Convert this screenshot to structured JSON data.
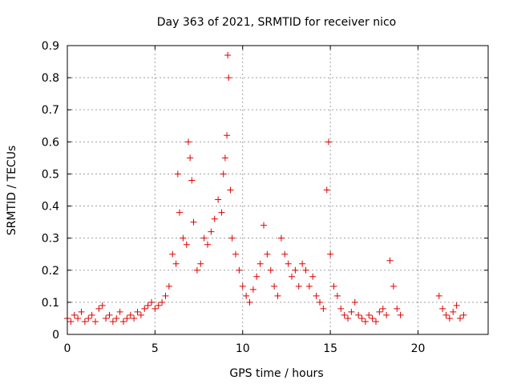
{
  "chart_data": {
    "type": "scatter",
    "title": "Day 363 of 2021, SRMTID for receiver nico",
    "xlabel": "GPS time / hours",
    "ylabel": "SRMTID / TECUs",
    "xlim": [
      0,
      24
    ],
    "ylim": [
      0,
      0.9
    ],
    "xticks": [
      0,
      5,
      10,
      15,
      20
    ],
    "xtick_labels": [
      "0",
      "5",
      "10",
      "15",
      "20"
    ],
    "yticks": [
      0,
      0.1,
      0.2,
      0.3,
      0.4,
      0.5,
      0.6,
      0.7,
      0.8,
      0.9
    ],
    "ytick_labels": [
      "0",
      "0.1",
      "0.2",
      "0.3",
      "0.4",
      "0.5",
      "0.6",
      "0.7",
      "0.8",
      "0.9"
    ],
    "grid": true,
    "marker": "+",
    "color": "#e00000",
    "series": [
      {
        "name": "SRMTID",
        "x": [
          0.0,
          0.2,
          0.4,
          0.6,
          0.8,
          1.0,
          1.2,
          1.4,
          1.6,
          1.8,
          2.0,
          2.2,
          2.4,
          2.6,
          2.8,
          3.0,
          3.2,
          3.4,
          3.6,
          3.8,
          4.0,
          4.2,
          4.4,
          4.6,
          4.8,
          5.0,
          5.2,
          5.4,
          5.6,
          5.8,
          6.0,
          6.2,
          6.3,
          6.4,
          6.6,
          6.8,
          6.9,
          7.0,
          7.1,
          7.2,
          7.4,
          7.6,
          7.8,
          8.0,
          8.2,
          8.4,
          8.6,
          8.8,
          8.9,
          9.0,
          9.1,
          9.15,
          9.2,
          9.3,
          9.4,
          9.6,
          9.8,
          10.0,
          10.2,
          10.4,
          10.6,
          10.8,
          11.0,
          11.2,
          11.4,
          11.6,
          11.8,
          12.0,
          12.2,
          12.4,
          12.6,
          12.8,
          13.0,
          13.2,
          13.4,
          13.6,
          13.8,
          14.0,
          14.2,
          14.4,
          14.6,
          14.8,
          14.9,
          15.0,
          15.2,
          15.4,
          15.6,
          15.8,
          16.0,
          16.2,
          16.4,
          16.6,
          16.8,
          17.0,
          17.2,
          17.4,
          17.6,
          17.8,
          18.0,
          18.2,
          18.4,
          18.6,
          18.8,
          19.0,
          21.2,
          21.4,
          21.6,
          21.8,
          22.0,
          22.2,
          22.4,
          22.6
        ],
        "y": [
          0.05,
          0.04,
          0.06,
          0.05,
          0.07,
          0.04,
          0.05,
          0.06,
          0.04,
          0.08,
          0.09,
          0.05,
          0.06,
          0.04,
          0.05,
          0.07,
          0.04,
          0.05,
          0.06,
          0.05,
          0.07,
          0.06,
          0.08,
          0.09,
          0.1,
          0.08,
          0.09,
          0.1,
          0.12,
          0.15,
          0.25,
          0.22,
          0.5,
          0.38,
          0.3,
          0.28,
          0.6,
          0.55,
          0.48,
          0.35,
          0.2,
          0.22,
          0.3,
          0.28,
          0.32,
          0.36,
          0.42,
          0.38,
          0.5,
          0.55,
          0.62,
          0.87,
          0.8,
          0.45,
          0.3,
          0.25,
          0.2,
          0.15,
          0.12,
          0.1,
          0.14,
          0.18,
          0.22,
          0.34,
          0.25,
          0.2,
          0.15,
          0.12,
          0.3,
          0.25,
          0.22,
          0.18,
          0.2,
          0.15,
          0.22,
          0.2,
          0.15,
          0.18,
          0.12,
          0.1,
          0.08,
          0.45,
          0.6,
          0.25,
          0.15,
          0.12,
          0.08,
          0.06,
          0.05,
          0.07,
          0.1,
          0.06,
          0.05,
          0.04,
          0.06,
          0.05,
          0.04,
          0.07,
          0.08,
          0.06,
          0.23,
          0.15,
          0.08,
          0.06,
          0.12,
          0.08,
          0.06,
          0.05,
          0.07,
          0.09,
          0.05,
          0.06
        ]
      }
    ]
  }
}
